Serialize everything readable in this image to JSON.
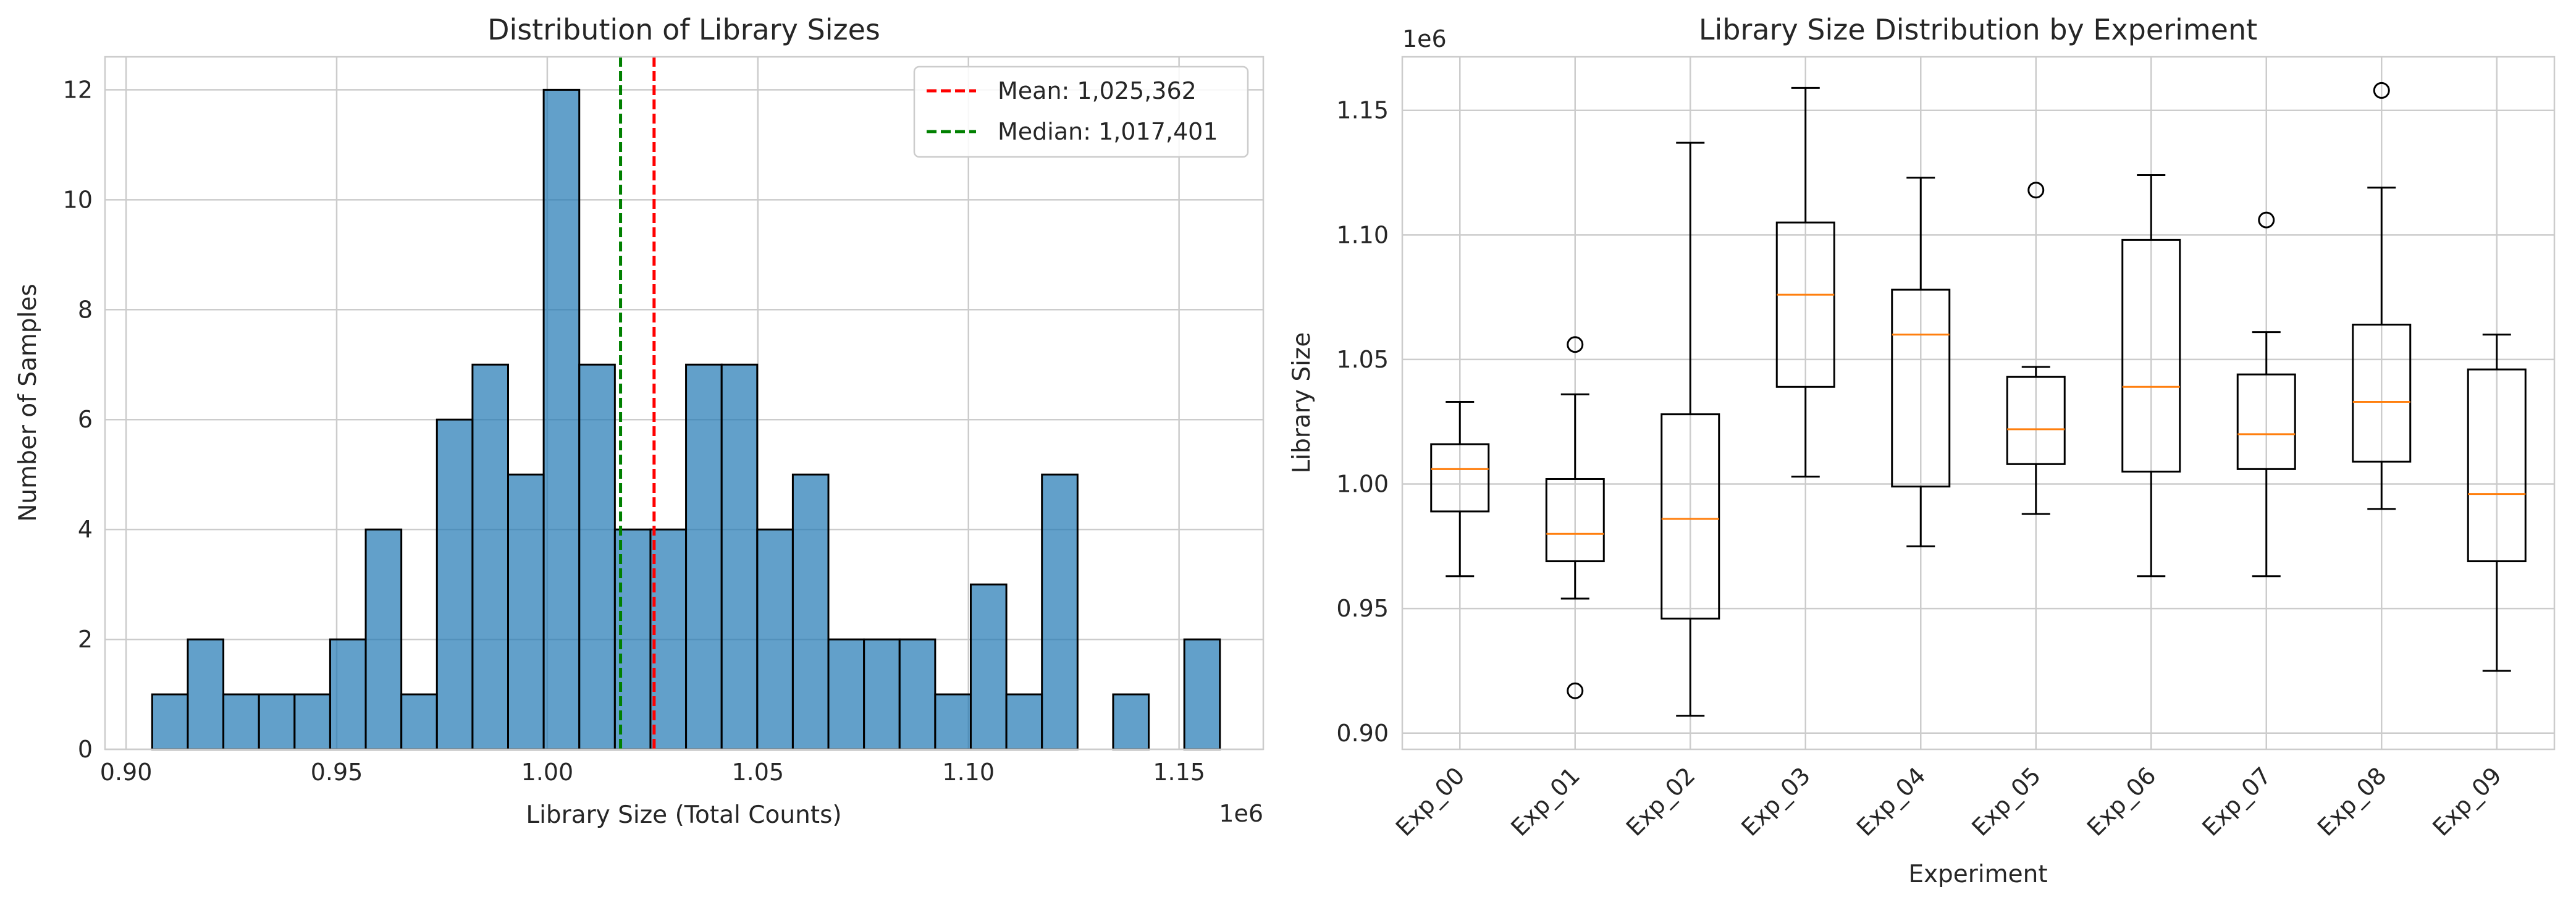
{
  "chart_data": [
    {
      "type": "bar",
      "subtype": "histogram",
      "title": "Distribution of Library Sizes",
      "xlabel": "Library Size (Total Counts)",
      "ylabel": "Number of Samples",
      "x_offset_label": "1e6",
      "xlim": [
        0.895,
        1.17
      ],
      "ylim": [
        0,
        12.6
      ],
      "x_ticks": [
        0.9,
        0.95,
        1.0,
        1.05,
        1.1,
        1.15
      ],
      "x_tick_labels": [
        "0.90",
        "0.95",
        "1.00",
        "1.05",
        "1.10",
        "1.15"
      ],
      "y_ticks": [
        0,
        2,
        4,
        6,
        8,
        10,
        12
      ],
      "y_tick_labels": [
        "0",
        "2",
        "4",
        "6",
        "8",
        "10",
        "12"
      ],
      "bin_start": 0.9062,
      "bin_width": 0.00845,
      "counts": [
        1,
        2,
        1,
        1,
        1,
        2,
        4,
        1,
        6,
        7,
        5,
        12,
        7,
        4,
        4,
        7,
        7,
        4,
        5,
        2,
        2,
        2,
        1,
        3,
        1,
        5,
        0,
        1,
        0,
        2
      ],
      "bar_color": "#1f77b4",
      "grid": true,
      "legend_position": "top-right",
      "reference_lines": [
        {
          "label": "Mean: 1,025,362",
          "value": 1.025362,
          "color": "#ff0000",
          "style": "dashed"
        },
        {
          "label": "Median: 1,017,401",
          "value": 1.017401,
          "color": "#008000",
          "style": "dashed"
        }
      ]
    },
    {
      "type": "box",
      "title": "Library Size Distribution by Experiment",
      "xlabel": "Experiment",
      "ylabel": "Library Size",
      "y_offset_label": "1e6",
      "ylim": [
        0.8935,
        1.1715
      ],
      "y_ticks": [
        0.9,
        0.95,
        1.0,
        1.05,
        1.1,
        1.15
      ],
      "y_tick_labels": [
        "0.90",
        "0.95",
        "1.00",
        "1.05",
        "1.10",
        "1.15"
      ],
      "categories": [
        "Exp_00",
        "Exp_01",
        "Exp_02",
        "Exp_03",
        "Exp_04",
        "Exp_05",
        "Exp_06",
        "Exp_07",
        "Exp_08",
        "Exp_09"
      ],
      "boxes": [
        {
          "whisker_low": 0.963,
          "q1": 0.989,
          "median": 1.006,
          "q3": 1.016,
          "whisker_high": 1.033,
          "outliers": []
        },
        {
          "whisker_low": 0.954,
          "q1": 0.969,
          "median": 0.98,
          "q3": 1.002,
          "whisker_high": 1.036,
          "outliers": [
            1.056,
            0.917
          ]
        },
        {
          "whisker_low": 0.907,
          "q1": 0.946,
          "median": 0.986,
          "q3": 1.028,
          "whisker_high": 1.137,
          "outliers": []
        },
        {
          "whisker_low": 1.003,
          "q1": 1.039,
          "median": 1.076,
          "q3": 1.105,
          "whisker_high": 1.159,
          "outliers": []
        },
        {
          "whisker_low": 0.975,
          "q1": 0.999,
          "median": 1.06,
          "q3": 1.078,
          "whisker_high": 1.123,
          "outliers": []
        },
        {
          "whisker_low": 0.988,
          "q1": 1.008,
          "median": 1.022,
          "q3": 1.043,
          "whisker_high": 1.047,
          "outliers": [
            1.118
          ]
        },
        {
          "whisker_low": 0.963,
          "q1": 1.005,
          "median": 1.039,
          "q3": 1.098,
          "whisker_high": 1.124,
          "outliers": []
        },
        {
          "whisker_low": 0.963,
          "q1": 1.006,
          "median": 1.02,
          "q3": 1.044,
          "whisker_high": 1.061,
          "outliers": [
            1.106
          ]
        },
        {
          "whisker_low": 0.99,
          "q1": 1.009,
          "median": 1.033,
          "q3": 1.064,
          "whisker_high": 1.119,
          "outliers": [
            1.158
          ]
        },
        {
          "whisker_low": 0.925,
          "q1": 0.969,
          "median": 0.996,
          "q3": 1.046,
          "whisker_high": 1.06,
          "outliers": []
        }
      ],
      "median_color": "#ff7f0e",
      "grid": true
    }
  ]
}
